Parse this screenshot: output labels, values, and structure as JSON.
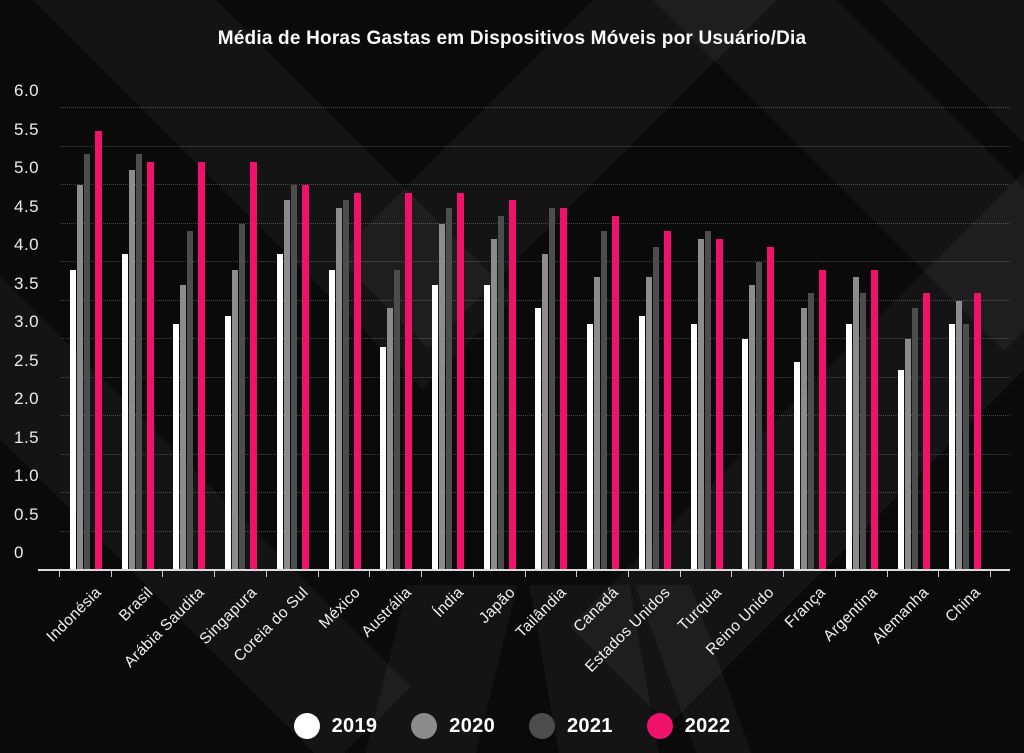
{
  "chart_data": {
    "type": "bar",
    "title": "Média de Horas Gastas em Dispositivos Móveis por Usuário/Dia",
    "xlabel": "",
    "ylabel": "",
    "ylim": [
      0,
      6
    ],
    "yticks": [
      0,
      0.5,
      1.0,
      1.5,
      2.0,
      2.5,
      3.0,
      3.5,
      4.0,
      4.5,
      5.0,
      5.5,
      6.0
    ],
    "ytick_labels": [
      "0",
      "0.5",
      "1.0",
      "1.5",
      "2.0",
      "2.5",
      "3.0",
      "3.5",
      "4.0",
      "4.5",
      "5.0",
      "5.5",
      "6.0"
    ],
    "grid": "horizontal-dotted",
    "legend_position": "bottom",
    "background_color": "#0a0a0a",
    "categories": [
      "Indonésia",
      "Brasil",
      "Arábia Saudita",
      "Singapura",
      "Coreia do Sul",
      "México",
      "Austrália",
      "Índia",
      "Japão",
      "Tailândia",
      "Canadá",
      "Estados Unidos",
      "Turquia",
      "Reino Unido",
      "França",
      "Argentina",
      "Alemanha",
      "China"
    ],
    "series": [
      {
        "name": "2019",
        "color": "#ffffff",
        "values": [
          3.9,
          4.1,
          3.2,
          3.3,
          4.1,
          3.9,
          2.9,
          3.7,
          3.7,
          3.4,
          3.2,
          3.3,
          3.2,
          3.0,
          2.7,
          3.2,
          2.6,
          3.2
        ]
      },
      {
        "name": "2020",
        "color": "#8c8c8c",
        "values": [
          5.0,
          5.2,
          3.7,
          3.9,
          4.8,
          4.7,
          3.4,
          4.5,
          4.3,
          4.1,
          3.8,
          3.8,
          4.3,
          3.7,
          3.4,
          3.8,
          3.0,
          3.5
        ]
      },
      {
        "name": "2021",
        "color": "#4d4d4d",
        "values": [
          5.4,
          5.4,
          4.4,
          4.5,
          5.0,
          4.8,
          3.9,
          4.7,
          4.6,
          4.7,
          4.4,
          4.2,
          4.4,
          4.0,
          3.6,
          3.6,
          3.4,
          3.2
        ]
      },
      {
        "name": "2022",
        "color": "#f0116b",
        "values": [
          5.7,
          5.3,
          5.3,
          5.3,
          5.0,
          4.9,
          4.9,
          4.9,
          4.8,
          4.7,
          4.6,
          4.4,
          4.3,
          4.2,
          3.9,
          3.9,
          3.6,
          3.6
        ]
      }
    ]
  }
}
